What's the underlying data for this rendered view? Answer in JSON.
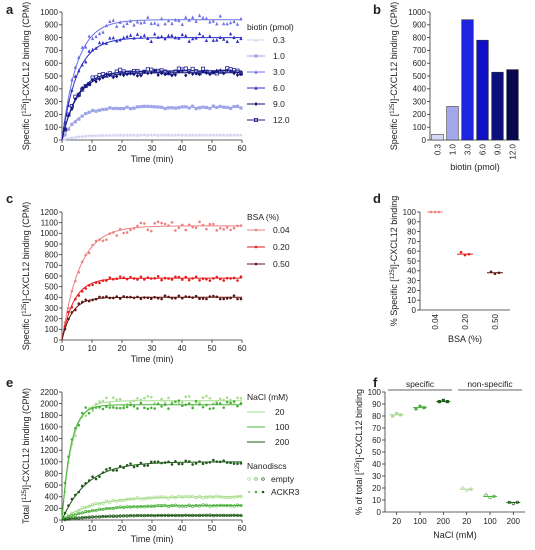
{
  "panels": [
    {
      "id": "a",
      "letter": "a",
      "chart_data": {
        "type": "scatter",
        "xlabel": "Time (min)",
        "ylabel_prefix": "Specific [",
        "ylabel_sup": "125",
        "ylabel_suffix": "I]-CXCL12 binding (CPM)",
        "xlim": [
          0,
          60
        ],
        "ylim": [
          0,
          1000
        ],
        "xticks": [
          0,
          10,
          20,
          30,
          40,
          50,
          60
        ],
        "yticks": [
          0,
          100,
          200,
          300,
          400,
          500,
          600,
          700,
          800,
          900,
          1000
        ],
        "legend_title": "biotin (pmol)",
        "legend_position": "right",
        "grid": false,
        "series": [
          {
            "name": "0.3",
            "color": "#d2d4f2",
            "marker": "triangle",
            "plateau": 40,
            "k": 0.2
          },
          {
            "name": "1.0",
            "color": "#9fa3e8",
            "marker": "square",
            "plateau": 255,
            "k": 0.2
          },
          {
            "name": "3.0",
            "color": "#6b70e8",
            "marker": "triangle",
            "plateau": 940,
            "k": 0.2
          },
          {
            "name": "6.0",
            "color": "#2c2fc4",
            "marker": "triangle",
            "plateau": 800,
            "k": 0.2
          },
          {
            "name": "9.0",
            "color": "#0c0e6e",
            "marker": "diamond",
            "plateau": 525,
            "k": 0.2
          },
          {
            "name": "12.0",
            "color": "#1c1f8c",
            "marker": "square-open",
            "plateau": 540,
            "k": 0.2
          }
        ]
      }
    },
    {
      "id": "b",
      "letter": "b",
      "chart_data": {
        "type": "bar",
        "xlabel": "biotin (pmol)",
        "ylabel_prefix": "Specific [",
        "ylabel_sup": "125",
        "ylabel_suffix": "I]-CXCL12 binding (CPM)",
        "categories": [
          "0.3",
          "1.0",
          "3.0",
          "6.0",
          "9.0",
          "12.0"
        ],
        "values": [
          45,
          262,
          940,
          780,
          530,
          550
        ],
        "colors": [
          "#d6d8f4",
          "#a3a6ea",
          "#1f24e0",
          "#1010c8",
          "#0d0f7a",
          "#070850"
        ],
        "ylim": [
          0,
          1000
        ],
        "yticks": [
          0,
          100,
          200,
          300,
          400,
          500,
          600,
          700,
          800,
          900,
          1000
        ],
        "grid": false
      }
    },
    {
      "id": "c",
      "letter": "c",
      "chart_data": {
        "type": "scatter",
        "xlabel": "Time (min)",
        "ylabel_prefix": "Specific [",
        "ylabel_sup": "125",
        "ylabel_suffix": "I]-CXCL12 binding (CPM)",
        "xlim": [
          0,
          60
        ],
        "ylim": [
          0,
          1200
        ],
        "xticks": [
          0,
          10,
          20,
          30,
          40,
          50,
          60
        ],
        "yticks": [
          0,
          100,
          200,
          300,
          400,
          500,
          600,
          700,
          800,
          900,
          1000,
          1100,
          1200
        ],
        "legend_title": "BSA (%)",
        "legend_position": "right",
        "grid": false,
        "series": [
          {
            "name": "0.04",
            "color": "#f08080",
            "marker": "dot",
            "plateau": 1070,
            "k": 0.17
          },
          {
            "name": "0.20",
            "color": "#e51d1d",
            "marker": "dot",
            "plateau": 580,
            "k": 0.25
          },
          {
            "name": "0.50",
            "color": "#5c1414",
            "marker": "dot",
            "plateau": 400,
            "k": 0.3
          }
        ]
      }
    },
    {
      "id": "d",
      "letter": "d",
      "chart_data": {
        "type": "scatter",
        "xlabel": "BSA (%)",
        "ylabel_prefix": "% Specific [",
        "ylabel_sup": "125",
        "ylabel_suffix": "I]-CXCL12 binding",
        "categories": [
          "0.04",
          "0.20",
          "0.50"
        ],
        "ylim": [
          0,
          100
        ],
        "yticks": [
          0,
          10,
          20,
          30,
          40,
          50,
          60,
          70,
          80,
          90,
          100
        ],
        "grid": false,
        "groups": [
          {
            "category": "0.04",
            "color": "#f08080",
            "values": [
              100,
              100,
              100
            ],
            "mean": 100
          },
          {
            "category": "0.20",
            "color": "#e51d1d",
            "values": [
              59,
              56,
              57
            ],
            "mean": 57
          },
          {
            "category": "0.50",
            "color": "#5c1414",
            "values": [
              39,
              37,
              38
            ],
            "mean": 38
          }
        ]
      }
    },
    {
      "id": "e",
      "letter": "e",
      "chart_data": {
        "type": "scatter",
        "xlabel": "Time (min)",
        "ylabel_prefix": "Total [",
        "ylabel_sup": "125",
        "ylabel_suffix": "I]-CXCL12 binding (CPM)",
        "xlim": [
          0,
          60
        ],
        "ylim": [
          0,
          2200
        ],
        "xticks": [
          0,
          10,
          20,
          30,
          40,
          50,
          60
        ],
        "yticks": [
          0,
          200,
          400,
          600,
          800,
          1000,
          1200,
          1400,
          1600,
          1800,
          2000,
          2200
        ],
        "legend_title": "NaCl (mM)",
        "legend_position": "right",
        "legend_title_2": "Nanodiscs",
        "legend_items_2": [
          "empty",
          "ACKR3"
        ],
        "grid": false,
        "series": [
          {
            "name": "20",
            "color": "#a6dc8c",
            "marker": "dot",
            "plateau": 2050,
            "k": 0.3,
            "nanodisc": "ACKR3"
          },
          {
            "name": "100",
            "color": "#4bb03c",
            "marker": "dot",
            "plateau": 1980,
            "k": 0.35,
            "nanodisc": "ACKR3"
          },
          {
            "name": "200",
            "color": "#1f5a1a",
            "marker": "dot",
            "plateau": 1000,
            "k": 0.12,
            "nanodisc": "ACKR3"
          },
          {
            "name": "20",
            "color": "#a6dc8c",
            "marker": "open",
            "plateau": 400,
            "k": 0.1,
            "nanodisc": "empty"
          },
          {
            "name": "100",
            "color": "#4bb03c",
            "marker": "open",
            "plateau": 250,
            "k": 0.1,
            "nanodisc": "empty"
          },
          {
            "name": "200",
            "color": "#1f5a1a",
            "marker": "open",
            "plateau": 80,
            "k": 0.1,
            "nanodisc": "empty"
          }
        ]
      }
    },
    {
      "id": "f",
      "letter": "f",
      "chart_data": {
        "type": "scatter",
        "xlabel": "NaCl (mM)",
        "ylabel_prefix": "% of total [",
        "ylabel_sup": "125",
        "ylabel_suffix": "I]-CXCL12 binding",
        "categories": [
          "20",
          "100",
          "200",
          "20",
          "100",
          "200"
        ],
        "ylim": [
          0,
          100
        ],
        "yticks": [
          0,
          10,
          20,
          30,
          40,
          50,
          60,
          70,
          80,
          90,
          100
        ],
        "group_labels": [
          "specific",
          "non-specific"
        ],
        "grid": false,
        "groups": [
          {
            "category": "20",
            "color": "#a6dc8c",
            "values": [
              80,
              82,
              81
            ],
            "mean": 81,
            "group": "specific"
          },
          {
            "category": "100",
            "color": "#4bb03c",
            "values": [
              86,
              88,
              87
            ],
            "mean": 87,
            "group": "specific"
          },
          {
            "category": "200",
            "color": "#1f5a1a",
            "values": [
              92,
              93,
              92
            ],
            "mean": 92,
            "group": "specific"
          },
          {
            "category": "20",
            "color": "#a6dc8c",
            "values": [
              20,
              18,
              19
            ],
            "mean": 19,
            "group": "non-specific"
          },
          {
            "category": "100",
            "color": "#4bb03c",
            "values": [
              14,
              12,
              13
            ],
            "mean": 13,
            "group": "non-specific"
          },
          {
            "category": "200",
            "color": "#1f5a1a",
            "values": [
              8,
              7,
              8
            ],
            "mean": 8,
            "group": "non-specific"
          }
        ]
      }
    }
  ]
}
